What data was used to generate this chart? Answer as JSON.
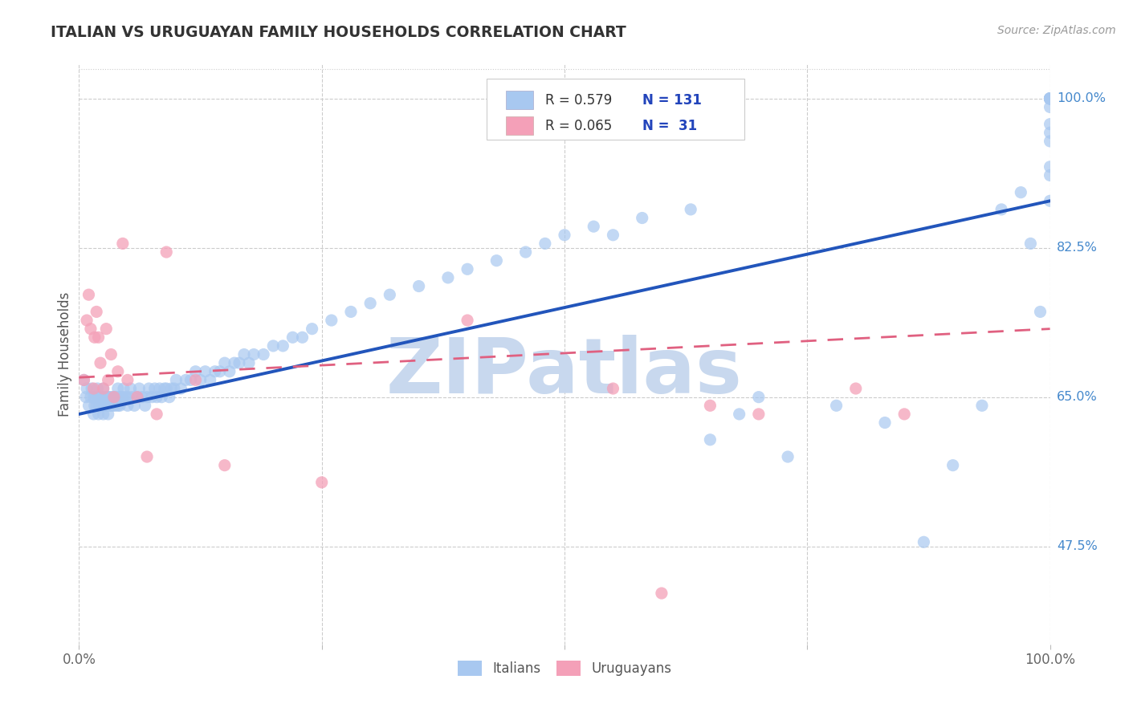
{
  "title": "ITALIAN VS URUGUAYAN FAMILY HOUSEHOLDS CORRELATION CHART",
  "source": "Source: ZipAtlas.com",
  "ylabel": "Family Households",
  "ytick_labels": [
    "47.5%",
    "65.0%",
    "82.5%",
    "100.0%"
  ],
  "ytick_values": [
    0.475,
    0.65,
    0.825,
    1.0
  ],
  "xlim": [
    0.0,
    1.0
  ],
  "ylim": [
    0.36,
    1.04
  ],
  "legend_italian_R": "0.579",
  "legend_italian_N": "131",
  "legend_uruguayan_R": "0.065",
  "legend_uruguayan_N": "31",
  "italian_color": "#A8C8F0",
  "uruguayan_color": "#F4A0B8",
  "italian_line_color": "#2255BB",
  "uruguayan_line_color": "#E06080",
  "background_color": "#FFFFFF",
  "watermark": "ZIPatlas",
  "watermark_color": "#C8D8EE",
  "italian_x": [
    0.005,
    0.007,
    0.008,
    0.01,
    0.012,
    0.013,
    0.015,
    0.015,
    0.016,
    0.017,
    0.018,
    0.019,
    0.02,
    0.02,
    0.021,
    0.022,
    0.023,
    0.024,
    0.025,
    0.025,
    0.026,
    0.027,
    0.028,
    0.029,
    0.03,
    0.03,
    0.031,
    0.032,
    0.033,
    0.034,
    0.035,
    0.036,
    0.037,
    0.038,
    0.04,
    0.04,
    0.041,
    0.042,
    0.043,
    0.045,
    0.046,
    0.048,
    0.05,
    0.051,
    0.053,
    0.055,
    0.057,
    0.06,
    0.062,
    0.065,
    0.068,
    0.07,
    0.072,
    0.075,
    0.078,
    0.08,
    0.083,
    0.085,
    0.088,
    0.09,
    0.093,
    0.095,
    0.098,
    0.1,
    0.105,
    0.11,
    0.115,
    0.12,
    0.125,
    0.13,
    0.135,
    0.14,
    0.145,
    0.15,
    0.155,
    0.16,
    0.165,
    0.17,
    0.175,
    0.18,
    0.19,
    0.2,
    0.21,
    0.22,
    0.23,
    0.24,
    0.26,
    0.28,
    0.3,
    0.32,
    0.35,
    0.38,
    0.4,
    0.43,
    0.46,
    0.48,
    0.5,
    0.53,
    0.55,
    0.58,
    0.63,
    0.65,
    0.68,
    0.7,
    0.73,
    0.78,
    0.83,
    0.87,
    0.9,
    0.93,
    0.95,
    0.97,
    0.98,
    0.99,
    1.0,
    1.0,
    1.0,
    1.0,
    1.0,
    1.0,
    1.0,
    1.0,
    1.0,
    1.0,
    1.0,
    1.0,
    1.0,
    1.0,
    1.0,
    1.0,
    1.0
  ],
  "italian_y": [
    0.67,
    0.65,
    0.66,
    0.64,
    0.65,
    0.66,
    0.63,
    0.65,
    0.64,
    0.65,
    0.64,
    0.66,
    0.63,
    0.65,
    0.64,
    0.65,
    0.64,
    0.65,
    0.63,
    0.66,
    0.64,
    0.65,
    0.64,
    0.65,
    0.63,
    0.65,
    0.64,
    0.65,
    0.64,
    0.65,
    0.64,
    0.65,
    0.64,
    0.65,
    0.64,
    0.66,
    0.65,
    0.64,
    0.65,
    0.65,
    0.66,
    0.65,
    0.64,
    0.65,
    0.66,
    0.65,
    0.64,
    0.65,
    0.66,
    0.65,
    0.64,
    0.65,
    0.66,
    0.65,
    0.66,
    0.65,
    0.66,
    0.65,
    0.66,
    0.66,
    0.65,
    0.66,
    0.66,
    0.67,
    0.66,
    0.67,
    0.67,
    0.68,
    0.67,
    0.68,
    0.67,
    0.68,
    0.68,
    0.69,
    0.68,
    0.69,
    0.69,
    0.7,
    0.69,
    0.7,
    0.7,
    0.71,
    0.71,
    0.72,
    0.72,
    0.73,
    0.74,
    0.75,
    0.76,
    0.77,
    0.78,
    0.79,
    0.8,
    0.81,
    0.82,
    0.83,
    0.84,
    0.85,
    0.84,
    0.86,
    0.87,
    0.6,
    0.63,
    0.65,
    0.58,
    0.64,
    0.62,
    0.48,
    0.57,
    0.64,
    0.87,
    0.89,
    0.83,
    0.75,
    1.0,
    1.0,
    1.0,
    1.0,
    1.0,
    1.0,
    1.0,
    1.0,
    1.0,
    1.0,
    0.97,
    0.92,
    0.95,
    0.88,
    0.96,
    0.99,
    0.91
  ],
  "uruguayan_x": [
    0.005,
    0.008,
    0.01,
    0.012,
    0.015,
    0.016,
    0.018,
    0.02,
    0.022,
    0.025,
    0.028,
    0.03,
    0.033,
    0.036,
    0.04,
    0.045,
    0.05,
    0.06,
    0.07,
    0.08,
    0.09,
    0.12,
    0.15,
    0.25,
    0.4,
    0.55,
    0.6,
    0.65,
    0.7,
    0.8,
    0.85
  ],
  "uruguayan_y": [
    0.67,
    0.74,
    0.77,
    0.73,
    0.66,
    0.72,
    0.75,
    0.72,
    0.69,
    0.66,
    0.73,
    0.67,
    0.7,
    0.65,
    0.68,
    0.83,
    0.67,
    0.65,
    0.58,
    0.63,
    0.82,
    0.67,
    0.57,
    0.55,
    0.74,
    0.66,
    0.42,
    0.64,
    0.63,
    0.66,
    0.63
  ],
  "it_line_x0": 0.0,
  "it_line_y0": 0.63,
  "it_line_x1": 1.0,
  "it_line_y1": 0.88,
  "ur_line_x0": 0.0,
  "ur_line_y0": 0.673,
  "ur_line_x1": 1.0,
  "ur_line_y1": 0.73
}
